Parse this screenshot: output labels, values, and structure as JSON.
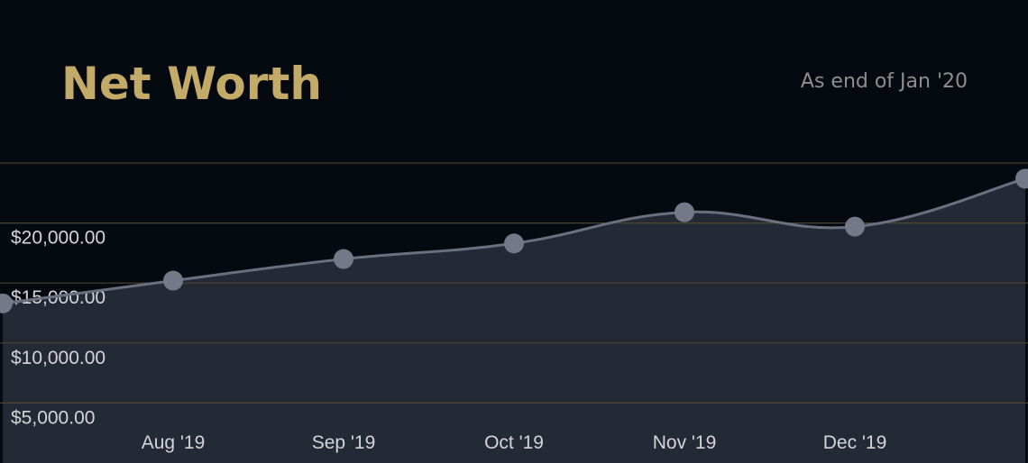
{
  "chart_data": {
    "type": "line",
    "title": "Net Worth",
    "subtitle": "As end of Jan '20",
    "categories": [
      null,
      "Aug '19",
      "Sep '19",
      "Oct '19",
      "Nov '19",
      "Dec '19",
      null
    ],
    "series": [
      {
        "name": "Net Worth",
        "color": "#6b7080",
        "values": [
          13300,
          15200,
          17000,
          18300,
          20900,
          19700,
          23700
        ]
      }
    ],
    "ylim": [
      0,
      25000
    ],
    "yticks": [
      {
        "value": 5000,
        "label": "$5,000.00"
      },
      {
        "value": 10000,
        "label": "$10,000.00"
      },
      {
        "value": 15000,
        "label": "$15,000.00"
      },
      {
        "value": 20000,
        "label": "$20,000.00"
      }
    ],
    "grid": true
  }
}
